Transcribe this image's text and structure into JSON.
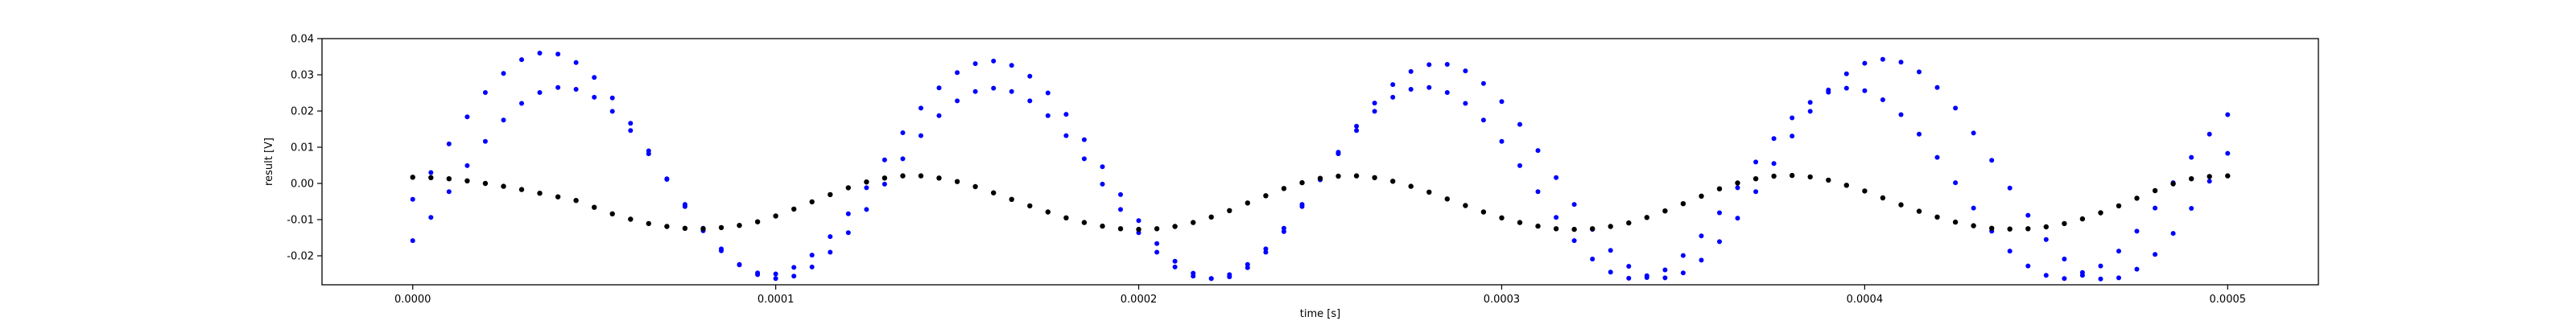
{
  "chart_data": {
    "type": "scatter",
    "title": "",
    "xlabel": "time [s]",
    "ylabel": "result [V]",
    "xlim": [
      -2.5e-05,
      0.000525
    ],
    "ylim": [
      -0.028,
      0.04
    ],
    "x_ticks": [
      0.0,
      0.0001,
      0.0002,
      0.0003,
      0.0004,
      0.0005
    ],
    "x_tick_labels": [
      "0.0000",
      "0.0001",
      "0.0002",
      "0.0003",
      "0.0004",
      "0.0005"
    ],
    "y_ticks": [
      -0.02,
      -0.01,
      0.0,
      0.01,
      0.02,
      0.03,
      0.04
    ],
    "y_tick_labels": [
      "-0.02",
      "-0.01",
      "0.00",
      "0.01",
      "0.02",
      "0.03",
      "0.04"
    ],
    "grid": false,
    "legend": "none",
    "series": [
      {
        "color": "#0000ff",
        "marker": "dot",
        "x": [
          0.0,
          5e-06,
          1e-05,
          1.5e-05,
          2e-05,
          2.5e-05,
          3e-05,
          3.5e-05,
          4e-05,
          4.5e-05,
          5e-05,
          5.5e-05,
          6e-05,
          6.5e-05,
          7e-05,
          7.5e-05,
          8e-05,
          8.5e-05,
          9e-05,
          9.5e-05,
          0.0001,
          0.000105,
          0.00011,
          0.000115,
          0.00012,
          0.000125,
          0.00013,
          0.000135,
          0.00014,
          0.000145,
          0.00015,
          0.000155,
          0.00016,
          0.000165,
          0.00017,
          0.000175,
          0.00018,
          0.000185,
          0.00019,
          0.000195,
          0.0002,
          0.000205,
          0.00021,
          0.000215,
          0.00022,
          0.000225,
          0.00023,
          0.000235,
          0.00024,
          0.000245,
          0.00025,
          0.000255,
          0.00026,
          0.000265,
          0.00027,
          0.000275,
          0.00028,
          0.000285,
          0.00029,
          0.000295,
          0.0003,
          0.000305,
          0.00031,
          0.000315,
          0.00032,
          0.000325,
          0.00033,
          0.000335,
          0.00034,
          0.000345,
          0.00035,
          0.000355,
          0.00036,
          0.000365,
          0.00037,
          0.000375,
          0.00038,
          0.000385,
          0.00039,
          0.000395,
          0.0004,
          0.000405,
          0.00041,
          0.000415,
          0.00042,
          0.000425,
          0.00043,
          0.000435,
          0.00044,
          0.000445,
          0.00045,
          0.000455,
          0.00046,
          0.000465,
          0.00047,
          0.000475,
          0.00048,
          0.000485,
          0.00049,
          0.000495,
          0.0005
        ],
        "y": [
          -0.0158,
          -0.0094,
          -0.0023,
          0.0049,
          0.0116,
          0.0175,
          0.0221,
          0.0251,
          0.0265,
          0.026,
          0.0238,
          0.0199,
          0.0146,
          0.0082,
          0.0013,
          -0.0058,
          -0.0124,
          -0.0181,
          -0.0224,
          -0.0252,
          -0.0263,
          -0.0256,
          -0.0231,
          -0.019,
          -0.0136,
          -0.0072,
          -0.0002,
          0.0068,
          0.0132,
          0.0187,
          0.0228,
          0.0254,
          0.0263,
          0.0254,
          0.0228,
          0.0187,
          0.0132,
          0.0068,
          -0.0002,
          -0.0072,
          -0.0136,
          -0.019,
          -0.0231,
          -0.0256,
          -0.0263,
          -0.0252,
          -0.0224,
          -0.0181,
          -0.0124,
          -0.0058,
          0.0013,
          0.0082,
          0.0146,
          0.0199,
          0.0238,
          0.026,
          0.0265,
          0.0251,
          0.0221,
          0.0175,
          0.0116,
          0.0049,
          -0.0023,
          -0.0094,
          -0.0158,
          -0.0209,
          -0.0245,
          -0.0262,
          -0.026,
          -0.0239,
          -0.0199,
          -0.0145,
          -0.0081,
          -0.0012,
          0.0059,
          0.0124,
          0.0181,
          0.0224,
          0.0252,
          0.0263,
          0.0256,
          0.0231,
          0.019,
          0.0136,
          0.0072,
          0.0002,
          -0.0068,
          -0.0132,
          -0.0187,
          -0.0228,
          -0.0254,
          -0.0263,
          -0.0254,
          -0.0228,
          -0.0187,
          -0.0132,
          -0.0068,
          0.0002,
          0.0072,
          0.0136,
          0.019
        ],
        "y_upper": [
          -0.0044,
          0.003,
          0.0109,
          0.0184,
          0.0251,
          0.0304,
          0.0342,
          0.036,
          0.0357,
          0.0334,
          0.0293,
          0.0236,
          0.0166,
          0.009,
          0.0011,
          -0.0064,
          -0.0131,
          -0.0186,
          -0.0225,
          -0.0247,
          -0.025,
          -0.0232,
          -0.0198,
          -0.0147,
          -0.0084,
          -0.0012,
          0.0065,
          0.014,
          0.0208,
          0.0264,
          0.0306,
          0.0331,
          0.0338,
          0.0326,
          0.0296,
          0.025,
          0.0191,
          0.0121,
          0.0046,
          -0.0031,
          -0.0103,
          -0.0166,
          -0.0215,
          -0.0248,
          -0.0263,
          -0.0258,
          -0.0233,
          -0.019,
          -0.0133,
          -0.0064,
          0.001,
          0.0086,
          0.0158,
          0.0222,
          0.0273,
          0.0309,
          0.0328,
          0.0329,
          0.0311,
          0.0276,
          0.0226,
          0.0163,
          0.0091,
          0.0016,
          -0.0058,
          -0.0127,
          -0.0185,
          -0.0229,
          -0.0255,
          -0.0261,
          -0.0247,
          -0.0212,
          -0.0161,
          -0.0096,
          -0.0023,
          0.0055,
          0.0131,
          0.0199,
          0.0258,
          0.0303,
          0.0332,
          0.0343,
          0.0335,
          0.0308,
          0.0265,
          0.0208,
          0.0139,
          0.0064,
          -0.0013,
          -0.0088,
          -0.0155,
          -0.0209,
          -0.0246,
          -0.0264,
          -0.0261,
          -0.0237,
          -0.0196,
          -0.0138,
          -0.0069,
          0.0006,
          0.0083
        ]
      },
      {
        "color": "#000000",
        "marker": "dot",
        "x": [
          0.0,
          5e-06,
          1e-05,
          1.5e-05,
          2e-05,
          2.5e-05,
          3e-05,
          3.5e-05,
          4e-05,
          4.5e-05,
          5e-05,
          5.5e-05,
          6e-05,
          6.5e-05,
          7e-05,
          7.5e-05,
          8e-05,
          8.5e-05,
          9e-05,
          9.5e-05,
          0.0001,
          0.000105,
          0.00011,
          0.000115,
          0.00012,
          0.000125,
          0.00013,
          0.000135,
          0.00014,
          0.000145,
          0.00015,
          0.000155,
          0.00016,
          0.000165,
          0.00017,
          0.000175,
          0.00018,
          0.000185,
          0.00019,
          0.000195,
          0.0002,
          0.000205,
          0.00021,
          0.000215,
          0.00022,
          0.000225,
          0.00023,
          0.000235,
          0.00024,
          0.000245,
          0.00025,
          0.000255,
          0.00026,
          0.000265,
          0.00027,
          0.000275,
          0.00028,
          0.000285,
          0.00029,
          0.000295,
          0.0003,
          0.000305,
          0.00031,
          0.000315,
          0.00032,
          0.000325,
          0.00033,
          0.000335,
          0.00034,
          0.000345,
          0.00035,
          0.000355,
          0.00036,
          0.000365,
          0.00037,
          0.000375,
          0.00038,
          0.000385,
          0.00039,
          0.000395,
          0.0004,
          0.000405,
          0.00041,
          0.000415,
          0.00042,
          0.000425,
          0.00043,
          0.000435,
          0.00044,
          0.000445,
          0.00045,
          0.000455,
          0.00046,
          0.000465,
          0.00047,
          0.000475,
          0.00048,
          0.000485,
          0.00049,
          0.000495,
          0.0005
        ],
        "y": [
          0.0017,
          0.0016,
          0.0013,
          0.0007,
          0.0,
          -0.0008,
          -0.0017,
          -0.0027,
          -0.0037,
          -0.0047,
          -0.0066,
          -0.0084,
          -0.0099,
          -0.0111,
          -0.0119,
          -0.0124,
          -0.0125,
          -0.0122,
          -0.0116,
          -0.0106,
          -0.009,
          -0.0071,
          -0.0051,
          -0.0031,
          -0.0012,
          0.0004,
          0.0015,
          0.0021,
          0.0021,
          0.0015,
          0.0005,
          -0.0009,
          -0.0026,
          -0.0044,
          -0.0062,
          -0.0079,
          -0.0095,
          -0.0108,
          -0.0118,
          -0.0125,
          -0.0127,
          -0.0125,
          -0.0119,
          -0.0108,
          -0.0093,
          -0.0075,
          -0.0054,
          -0.0034,
          -0.0014,
          0.0002,
          0.0014,
          0.002,
          0.0021,
          0.0016,
          0.0006,
          -0.0008,
          -0.0024,
          -0.0043,
          -0.0061,
          -0.0079,
          -0.0095,
          -0.0108,
          -0.0118,
          -0.0125,
          -0.0127,
          -0.0125,
          -0.0119,
          -0.0109,
          -0.0094,
          -0.0076,
          -0.0056,
          -0.0035,
          -0.0015,
          0.0001,
          0.0013,
          0.002,
          0.0022,
          0.0018,
          0.0009,
          -0.0005,
          -0.0021,
          -0.004,
          -0.0059,
          -0.0077,
          -0.0093,
          -0.0107,
          -0.0117,
          -0.0124,
          -0.0126,
          -0.0125,
          -0.012,
          -0.0111,
          -0.0098,
          -0.0081,
          -0.0062,
          -0.0041,
          -0.002,
          -0.0001,
          0.0013,
          0.0019,
          0.0021
        ]
      }
    ]
  }
}
